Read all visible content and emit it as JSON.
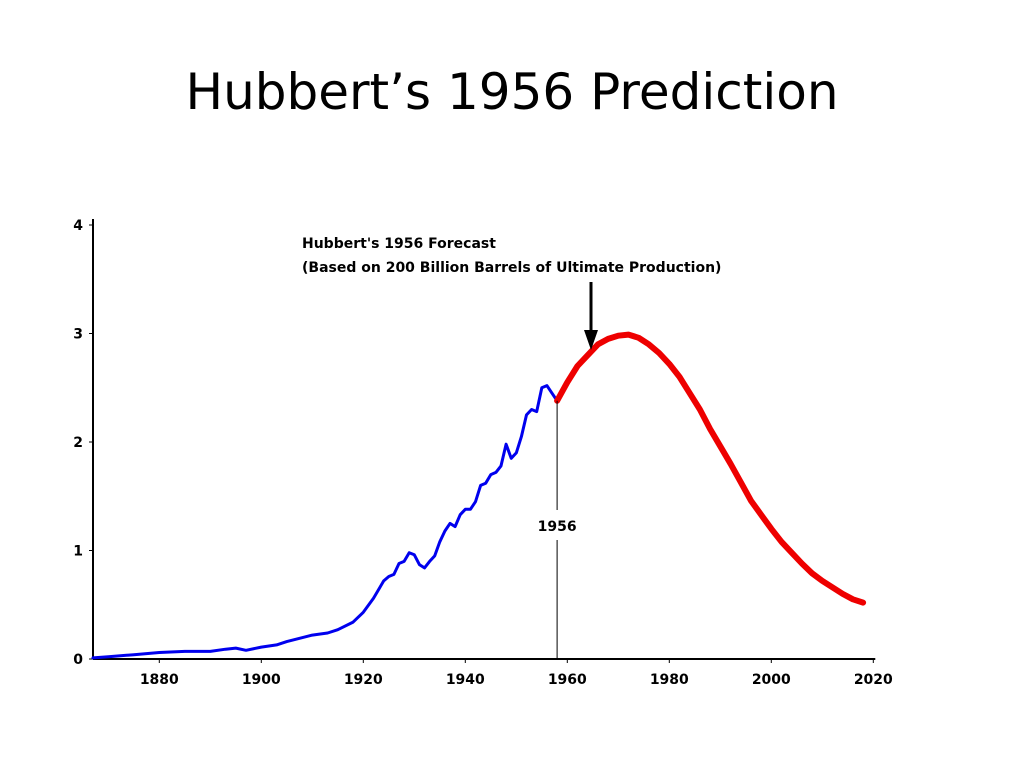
{
  "slide": {
    "title": "Hubbert’s 1956 Prediction"
  },
  "colors": {
    "historical": "#0000ee",
    "forecast": "#ee0000",
    "axis": "#000000"
  },
  "chart_data": {
    "type": "line",
    "title": "",
    "xlabel": "",
    "ylabel": "",
    "xlim": [
      1867,
      2020
    ],
    "ylim": [
      0,
      4
    ],
    "grid": false,
    "x_ticks": [
      1880,
      1900,
      1920,
      1940,
      1960,
      1980,
      2000,
      2020
    ],
    "y_ticks": [
      0,
      1,
      2,
      3,
      4
    ],
    "series": [
      {
        "color": "#0000ee",
        "x": [
          1867,
          1870,
          1875,
          1880,
          1885,
          1890,
          1893,
          1895,
          1897,
          1900,
          1903,
          1905,
          1910,
          1913,
          1915,
          1918,
          1920,
          1922,
          1924,
          1925,
          1926,
          1927,
          1928,
          1929,
          1930,
          1931,
          1932,
          1933,
          1934,
          1935,
          1936,
          1937,
          1938,
          1939,
          1940,
          1941,
          1942,
          1943,
          1944,
          1945,
          1946,
          1947,
          1948,
          1949,
          1950,
          1951,
          1952,
          1953,
          1954,
          1955,
          1956,
          1957,
          1958
        ],
        "y": [
          0.01,
          0.02,
          0.04,
          0.06,
          0.07,
          0.07,
          0.09,
          0.1,
          0.08,
          0.11,
          0.13,
          0.16,
          0.22,
          0.24,
          0.27,
          0.34,
          0.43,
          0.56,
          0.72,
          0.76,
          0.78,
          0.88,
          0.9,
          0.98,
          0.96,
          0.87,
          0.84,
          0.9,
          0.95,
          1.08,
          1.18,
          1.25,
          1.22,
          1.33,
          1.38,
          1.38,
          1.45,
          1.6,
          1.62,
          1.7,
          1.72,
          1.78,
          1.98,
          1.85,
          1.9,
          2.05,
          2.25,
          2.3,
          2.28,
          2.5,
          2.52,
          2.45,
          2.38
        ]
      },
      {
        "color": "#ee0000",
        "x": [
          1958,
          1960,
          1962,
          1964,
          1966,
          1968,
          1970,
          1972,
          1974,
          1976,
          1978,
          1980,
          1982,
          1984,
          1986,
          1988,
          1990,
          1992,
          1994,
          1996,
          1998,
          2000,
          2002,
          2004,
          2006,
          2008,
          2010,
          2012,
          2014,
          2016,
          2018
        ],
        "y": [
          2.38,
          2.55,
          2.7,
          2.8,
          2.9,
          2.95,
          2.98,
          2.99,
          2.96,
          2.9,
          2.82,
          2.72,
          2.6,
          2.45,
          2.3,
          2.12,
          1.96,
          1.8,
          1.63,
          1.46,
          1.33,
          1.2,
          1.08,
          0.98,
          0.88,
          0.79,
          0.72,
          0.66,
          0.6,
          0.55,
          0.52
        ]
      }
    ],
    "annotations": [
      {
        "lines": [
          "Hubbert's 1956 Forecast",
          "(Based on 200 Billion Barrels of Ultimate Production)"
        ]
      },
      {
        "text": "1956",
        "x": 1956
      }
    ]
  }
}
